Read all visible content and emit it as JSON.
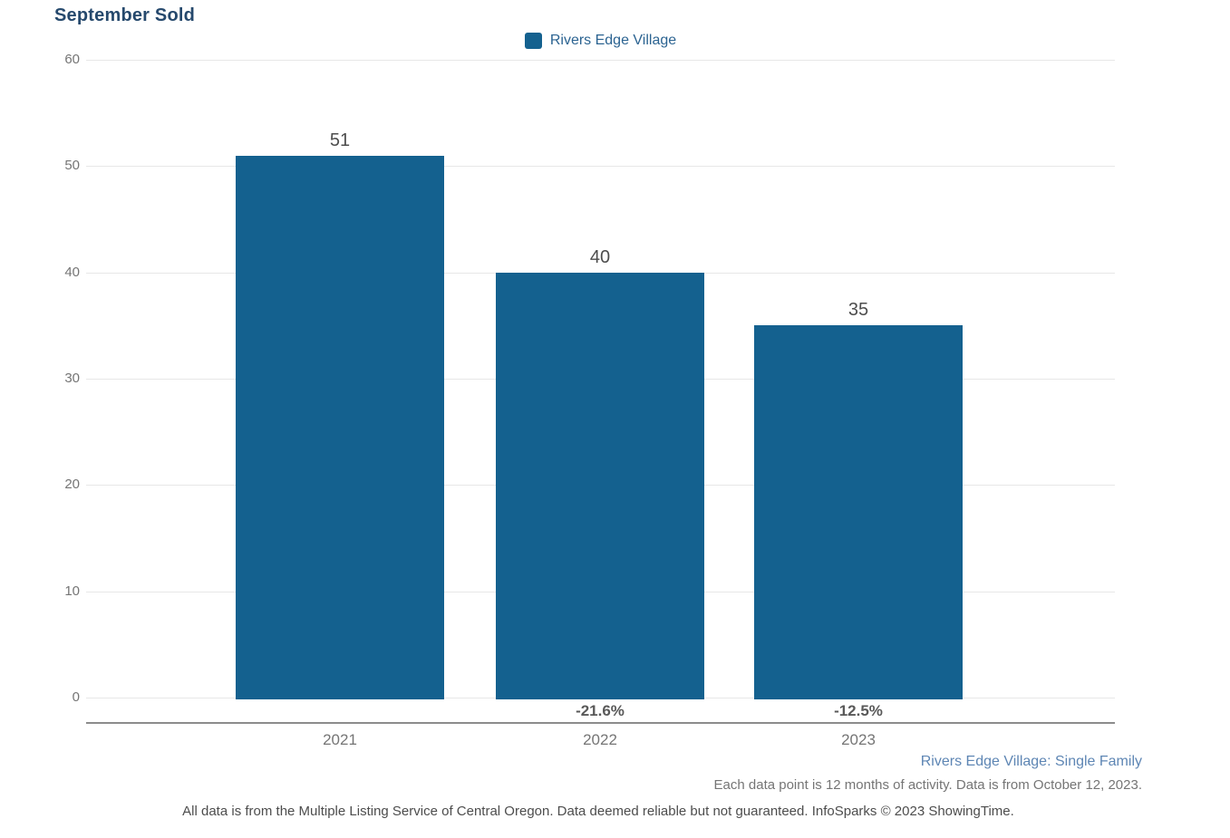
{
  "header": {
    "title": "September Sold"
  },
  "legend": {
    "series_label": "Rivers Edge Village"
  },
  "colors": {
    "bar": "#14618f",
    "title_text": "#26496d",
    "legend_text": "#2b6391",
    "footer_link_text": "#5e86b4",
    "gridline": "#e7e7e7",
    "axis_line": "#8c8c8c"
  },
  "chart_data": {
    "type": "bar",
    "title": "September Sold",
    "series_name": "Rivers Edge Village",
    "categories": [
      "2021",
      "2022",
      "2023"
    ],
    "values": [
      51,
      40,
      35
    ],
    "pct_change_labels": [
      "",
      "-21.6%",
      "-12.5%"
    ],
    "xlabel": "",
    "ylabel": "",
    "ylim": [
      0,
      60
    ],
    "yticks": [
      0,
      10,
      20,
      30,
      40,
      50,
      60
    ],
    "grid": true,
    "legend_position": "top-center"
  },
  "footer": {
    "series_note": "Rivers Edge Village: Single Family",
    "data_note": "Each data point is 12 months of activity. Data is from October 12, 2023.",
    "disclaimer": "All data is from the Multiple Listing Service of Central Oregon. Data deemed reliable but not guaranteed. InfoSparks © 2023 ShowingTime."
  }
}
